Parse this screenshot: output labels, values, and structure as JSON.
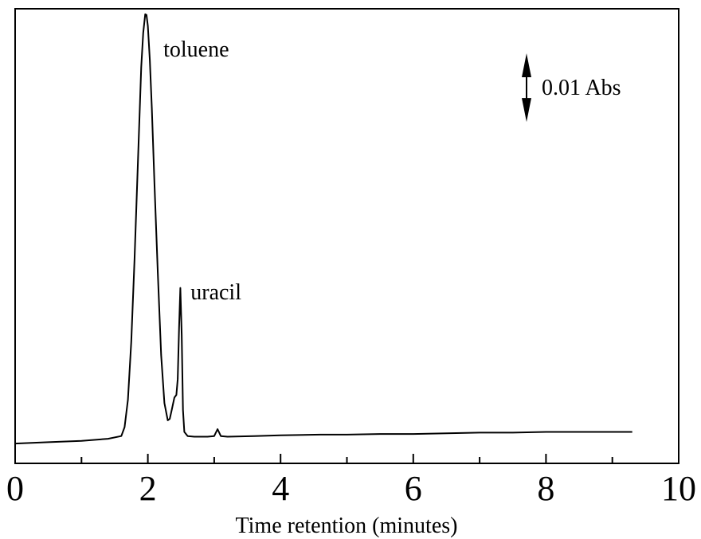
{
  "chart_data": {
    "type": "line",
    "title": "",
    "xlabel": "Time retention (minutes)",
    "ylabel": "",
    "xlim": [
      0,
      10
    ],
    "ylim": [
      0,
      0.0635
    ],
    "x_ticks_major": [
      "0",
      "2",
      "4",
      "6",
      "8",
      "10"
    ],
    "x_ticks_minor": [
      1,
      3,
      5,
      7,
      9
    ],
    "grid": false,
    "legend": "none",
    "scale_bar": {
      "label": "0.01 Abs",
      "value": 0.01
    },
    "annotations": [
      {
        "text": "toluene",
        "x": 1.97,
        "y": 0.0622
      },
      {
        "text": "uracil",
        "x": 2.5,
        "y": 0.0232
      }
    ],
    "series": [
      {
        "color": "#000000",
        "x": [
          0,
          0.5,
          1.0,
          1.4,
          1.6,
          1.65,
          1.7,
          1.75,
          1.8,
          1.85,
          1.9,
          1.93,
          1.96,
          1.98,
          2.0,
          2.03,
          2.06,
          2.1,
          2.15,
          2.2,
          2.25,
          2.3,
          2.33,
          2.36,
          2.4,
          2.43,
          2.45,
          2.47,
          2.49,
          2.51,
          2.53,
          2.55,
          2.6,
          2.7,
          2.9,
          3.0,
          3.05,
          3.1,
          3.2,
          3.6,
          4.0,
          4.6,
          5.0,
          5.5,
          6.0,
          6.5,
          7.0,
          7.5,
          8.0,
          8.5,
          9.0,
          9.3
        ],
        "y": [
          0.0001,
          0.0003,
          0.0005,
          0.0008,
          0.0012,
          0.0025,
          0.0065,
          0.015,
          0.027,
          0.041,
          0.055,
          0.06,
          0.0627,
          0.0626,
          0.061,
          0.056,
          0.049,
          0.038,
          0.025,
          0.013,
          0.006,
          0.0035,
          0.0037,
          0.005,
          0.0068,
          0.0072,
          0.0095,
          0.017,
          0.0228,
          0.016,
          0.005,
          0.0018,
          0.0012,
          0.0011,
          0.0011,
          0.0012,
          0.0022,
          0.0012,
          0.0011,
          0.0012,
          0.0013,
          0.0014,
          0.0014,
          0.0015,
          0.0015,
          0.0016,
          0.0017,
          0.0017,
          0.0018,
          0.0018,
          0.0018,
          0.0018
        ]
      }
    ]
  }
}
